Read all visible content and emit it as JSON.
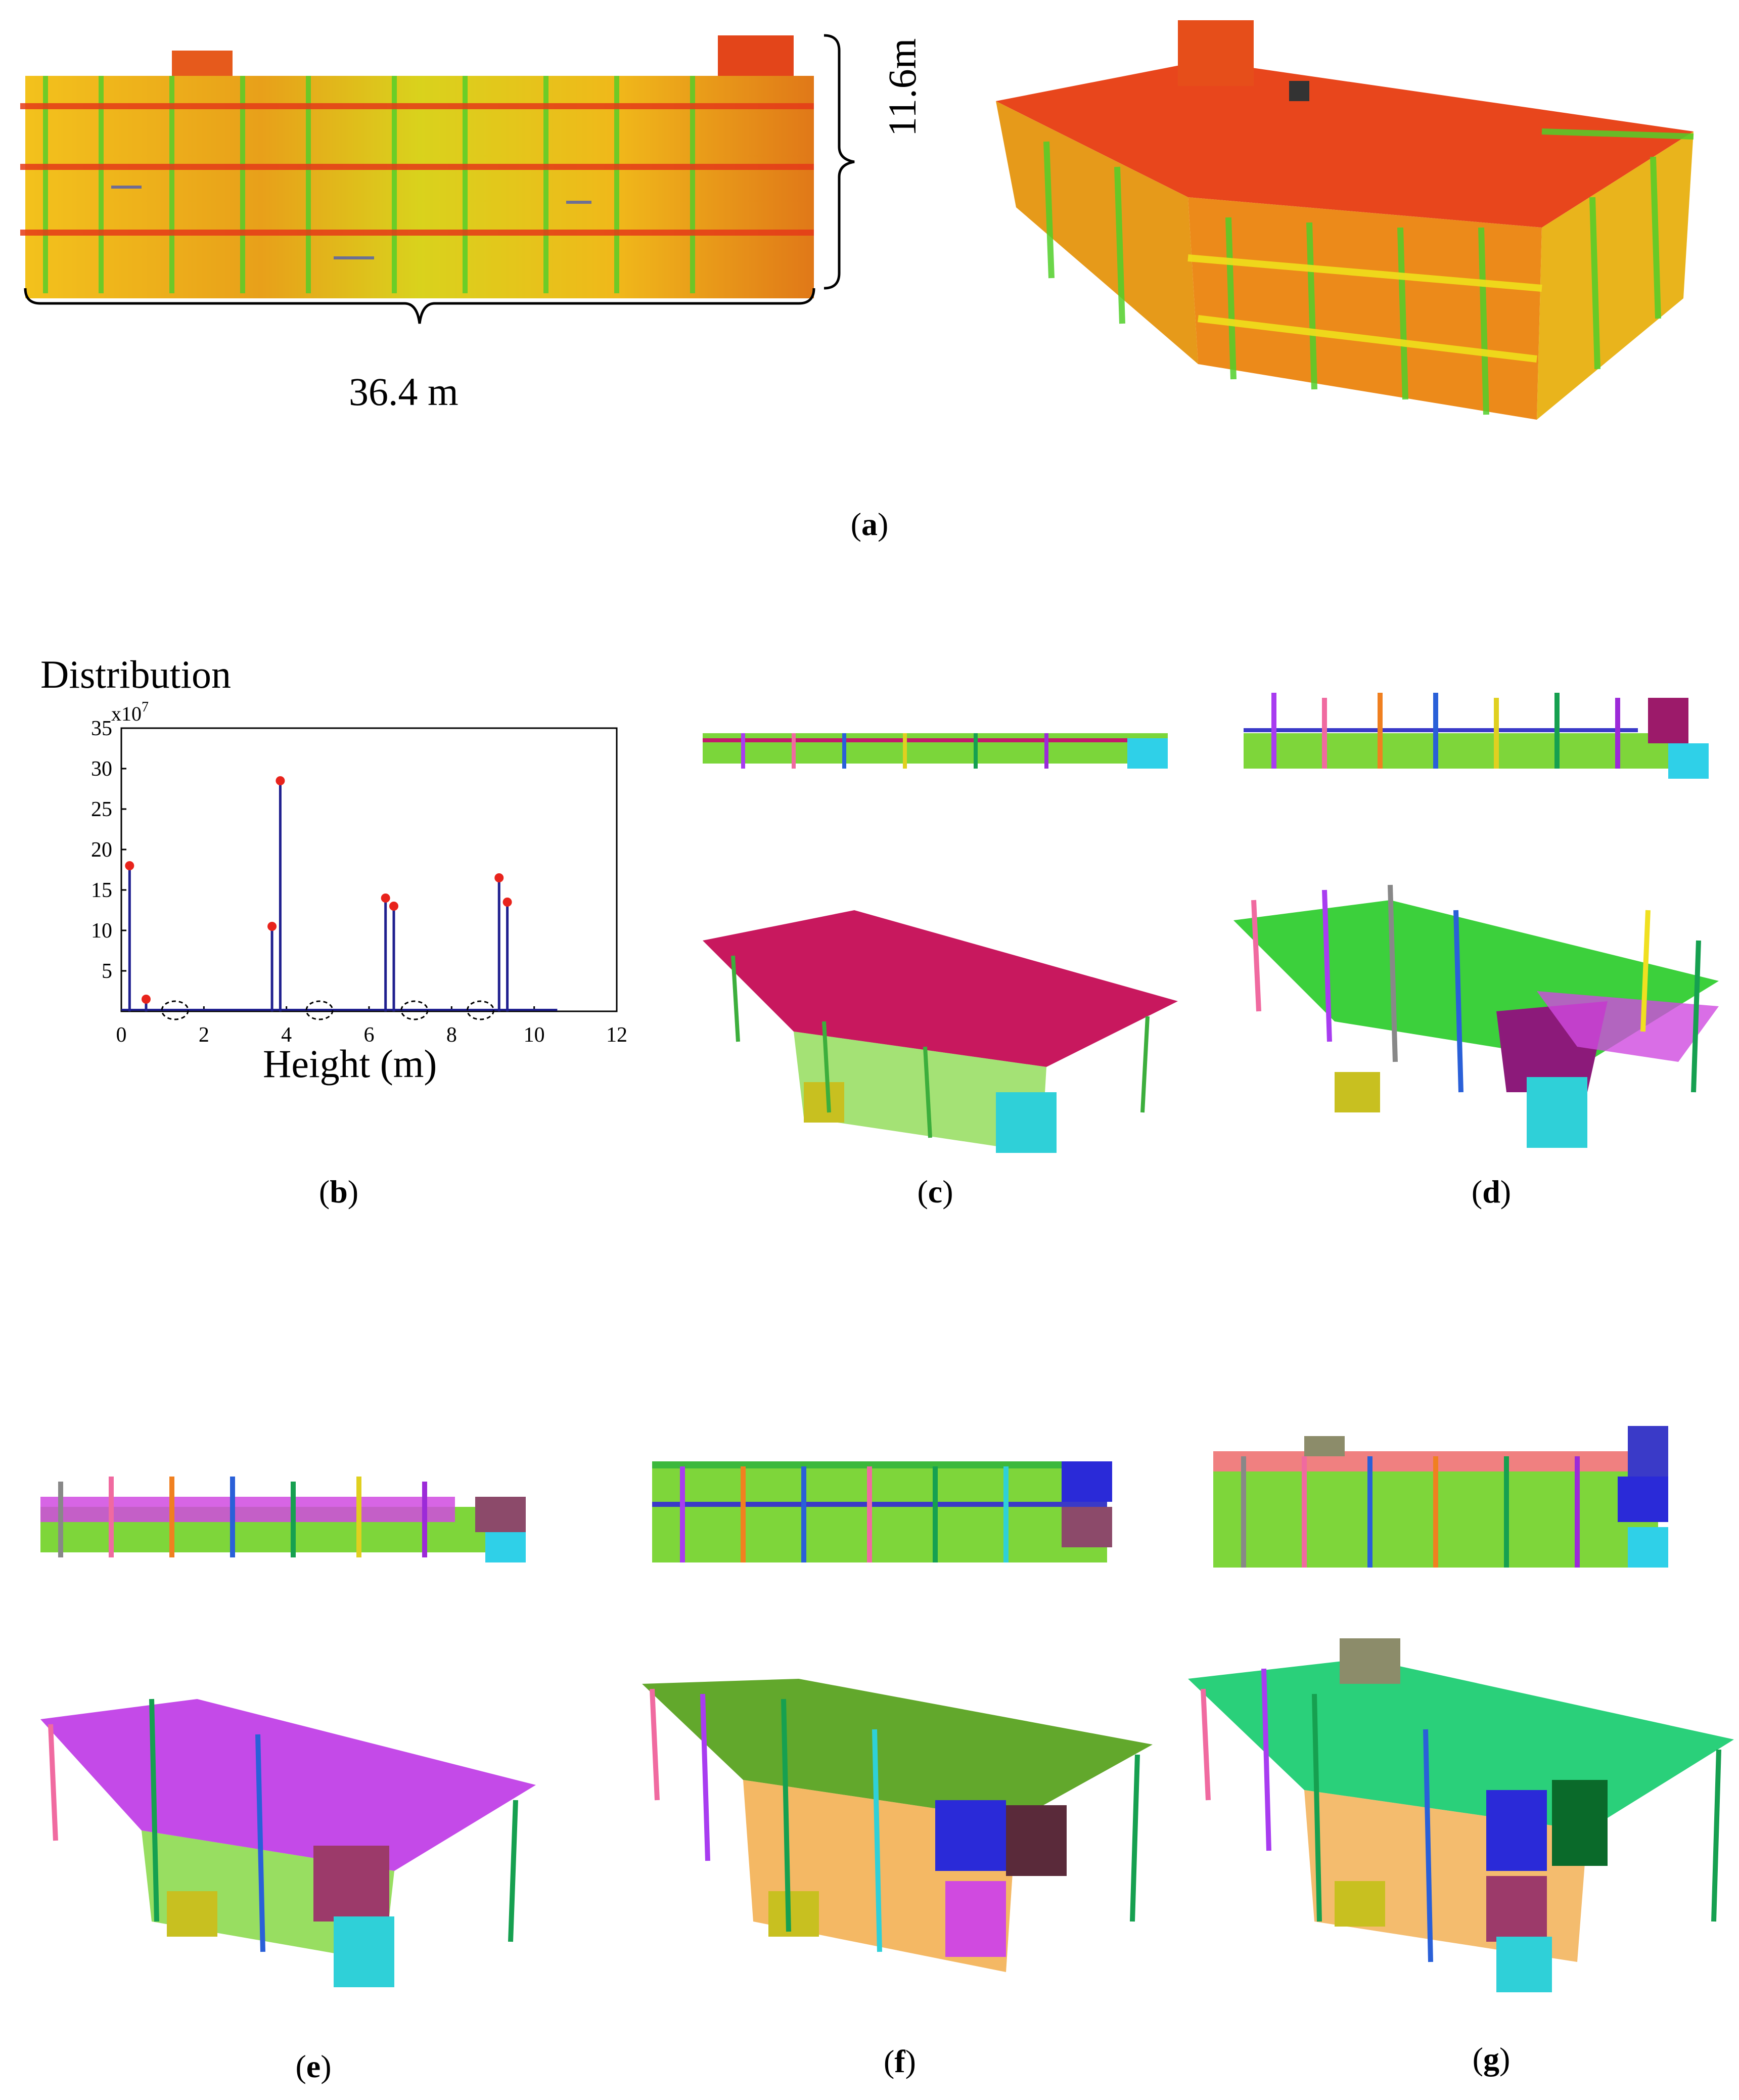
{
  "panel_a": {
    "caption": "a",
    "width_label": "36.4 m",
    "height_label": "11.6m"
  },
  "panel_b": {
    "caption": "b"
  },
  "panel_c": {
    "caption": "c"
  },
  "panel_d": {
    "caption": "d"
  },
  "panel_e": {
    "caption": "e"
  },
  "panel_f": {
    "caption": "f"
  },
  "panel_g": {
    "caption": "g"
  },
  "chart_data": {
    "type": "line",
    "title": "",
    "ylabel": "Distribution",
    "y_multiplier": "x10",
    "y_multiplier_exp": "7",
    "xlabel": "Height (m)",
    "xlim": [
      0,
      12
    ],
    "ylim": [
      0,
      35
    ],
    "xticks": [
      0,
      2,
      4,
      6,
      8,
      10,
      12
    ],
    "yticks": [
      5,
      10,
      15,
      20,
      25,
      30,
      35
    ],
    "peaks": [
      {
        "x": 0.2,
        "y": 18
      },
      {
        "x": 0.6,
        "y": 1.5
      },
      {
        "x": 3.65,
        "y": 10.5
      },
      {
        "x": 3.85,
        "y": 28.5
      },
      {
        "x": 6.4,
        "y": 14
      },
      {
        "x": 6.6,
        "y": 13
      },
      {
        "x": 9.15,
        "y": 16.5
      },
      {
        "x": 9.35,
        "y": 13.5
      }
    ],
    "gaps_marked": [
      1.3,
      4.8,
      7.1,
      8.7
    ]
  },
  "colors": {
    "axis": "#000000",
    "line": "#1f1f8f",
    "peak": "#e8231c",
    "gap_ellipse": "#000000"
  }
}
